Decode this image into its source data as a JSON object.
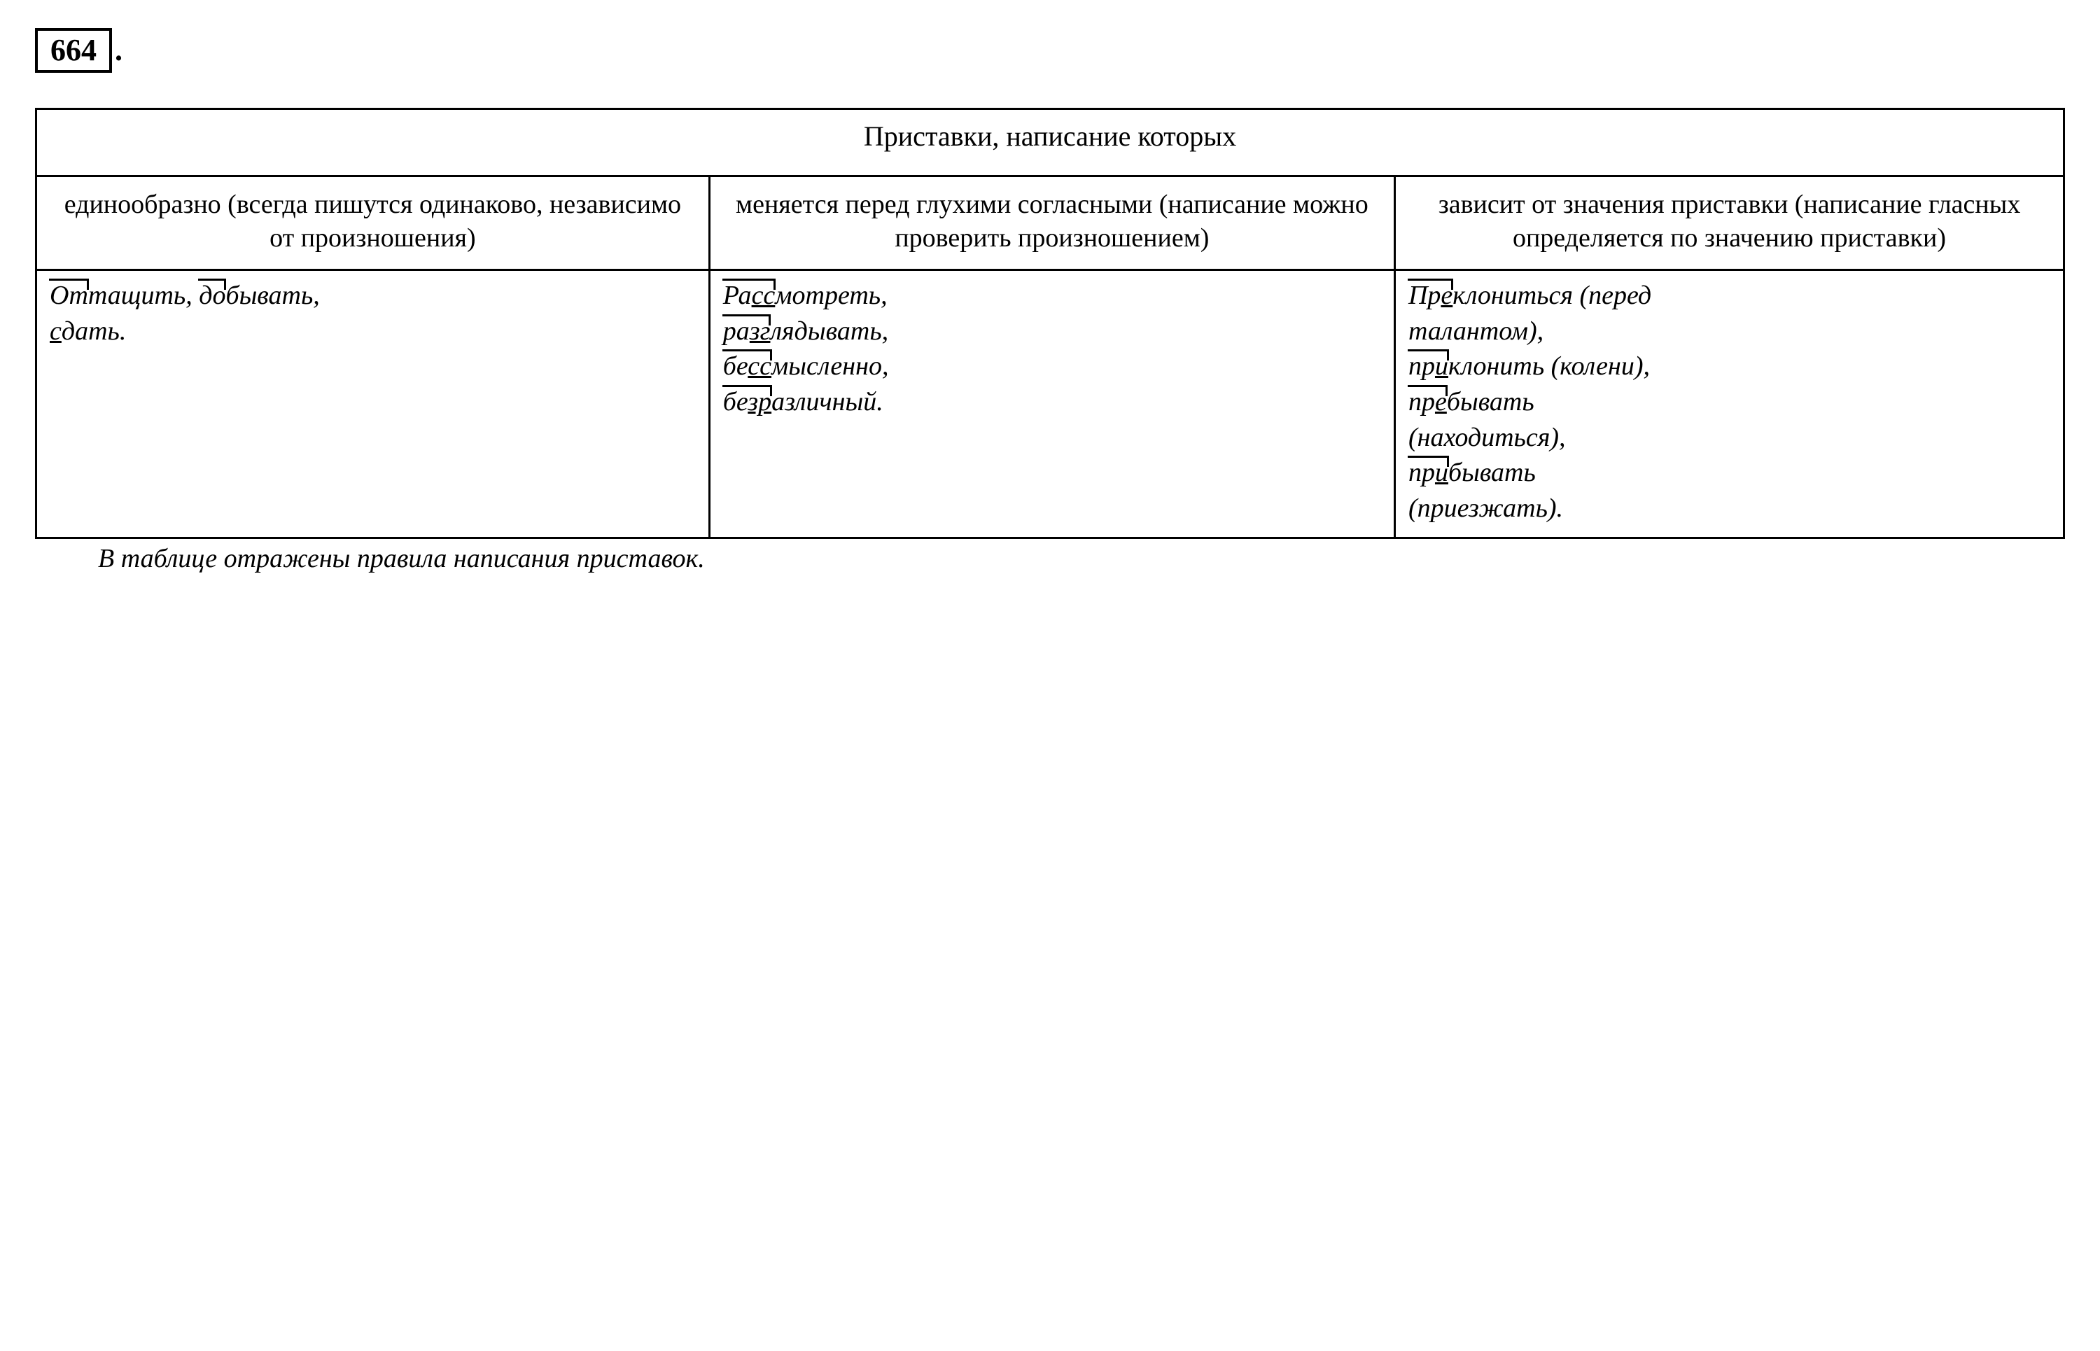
{
  "exercise": {
    "number": "664",
    "dot": "."
  },
  "table": {
    "caption": "Приставки, написание которых",
    "headers": [
      "единообразно (всегда пишутся одинаково, независимо от произношения)",
      "меняется перед глухими согласными (написание можно проверить произношением)",
      "зависит от значения приставки (написание гласных определяется по значению приставки)"
    ],
    "col1": {
      "w1_pre": "От",
      "w1_rest": "тащить, ",
      "w2_pre": "до",
      "w2_rest": "бывать,",
      "w3_uchar": "с",
      "w3_rest": "дать."
    },
    "col2": {
      "w1_pre": "Ра",
      "w1_u": "сс",
      "w1_rest": "мотреть,",
      "w2_prea": "ра",
      "w2_u": "зг",
      "w2_rest": "лядывать,",
      "w3_pre": "бе",
      "w3_u": "сс",
      "w3_rest": "мысленно,",
      "w4_prea": "бе",
      "w4_u": "зр",
      "w4_rest": "азличный."
    },
    "col3": {
      "w1_pre": "Пр",
      "w1_u": "е",
      "w1_rest": "клониться (перед",
      "l2": "талантом),",
      "w3_pre": "пр",
      "w3_u": "и",
      "w3_rest": "клонить (колени),",
      "w4_prea": "пр",
      "w4_u": "е",
      "w4_rest": "бывать",
      "l5": "(находиться),",
      "w6_pre": "пр",
      "w6_u": "и",
      "w6_rest": "бывать",
      "l7": "(приезжать)."
    }
  },
  "footer": "В таблице отражены правила написания приставок."
}
